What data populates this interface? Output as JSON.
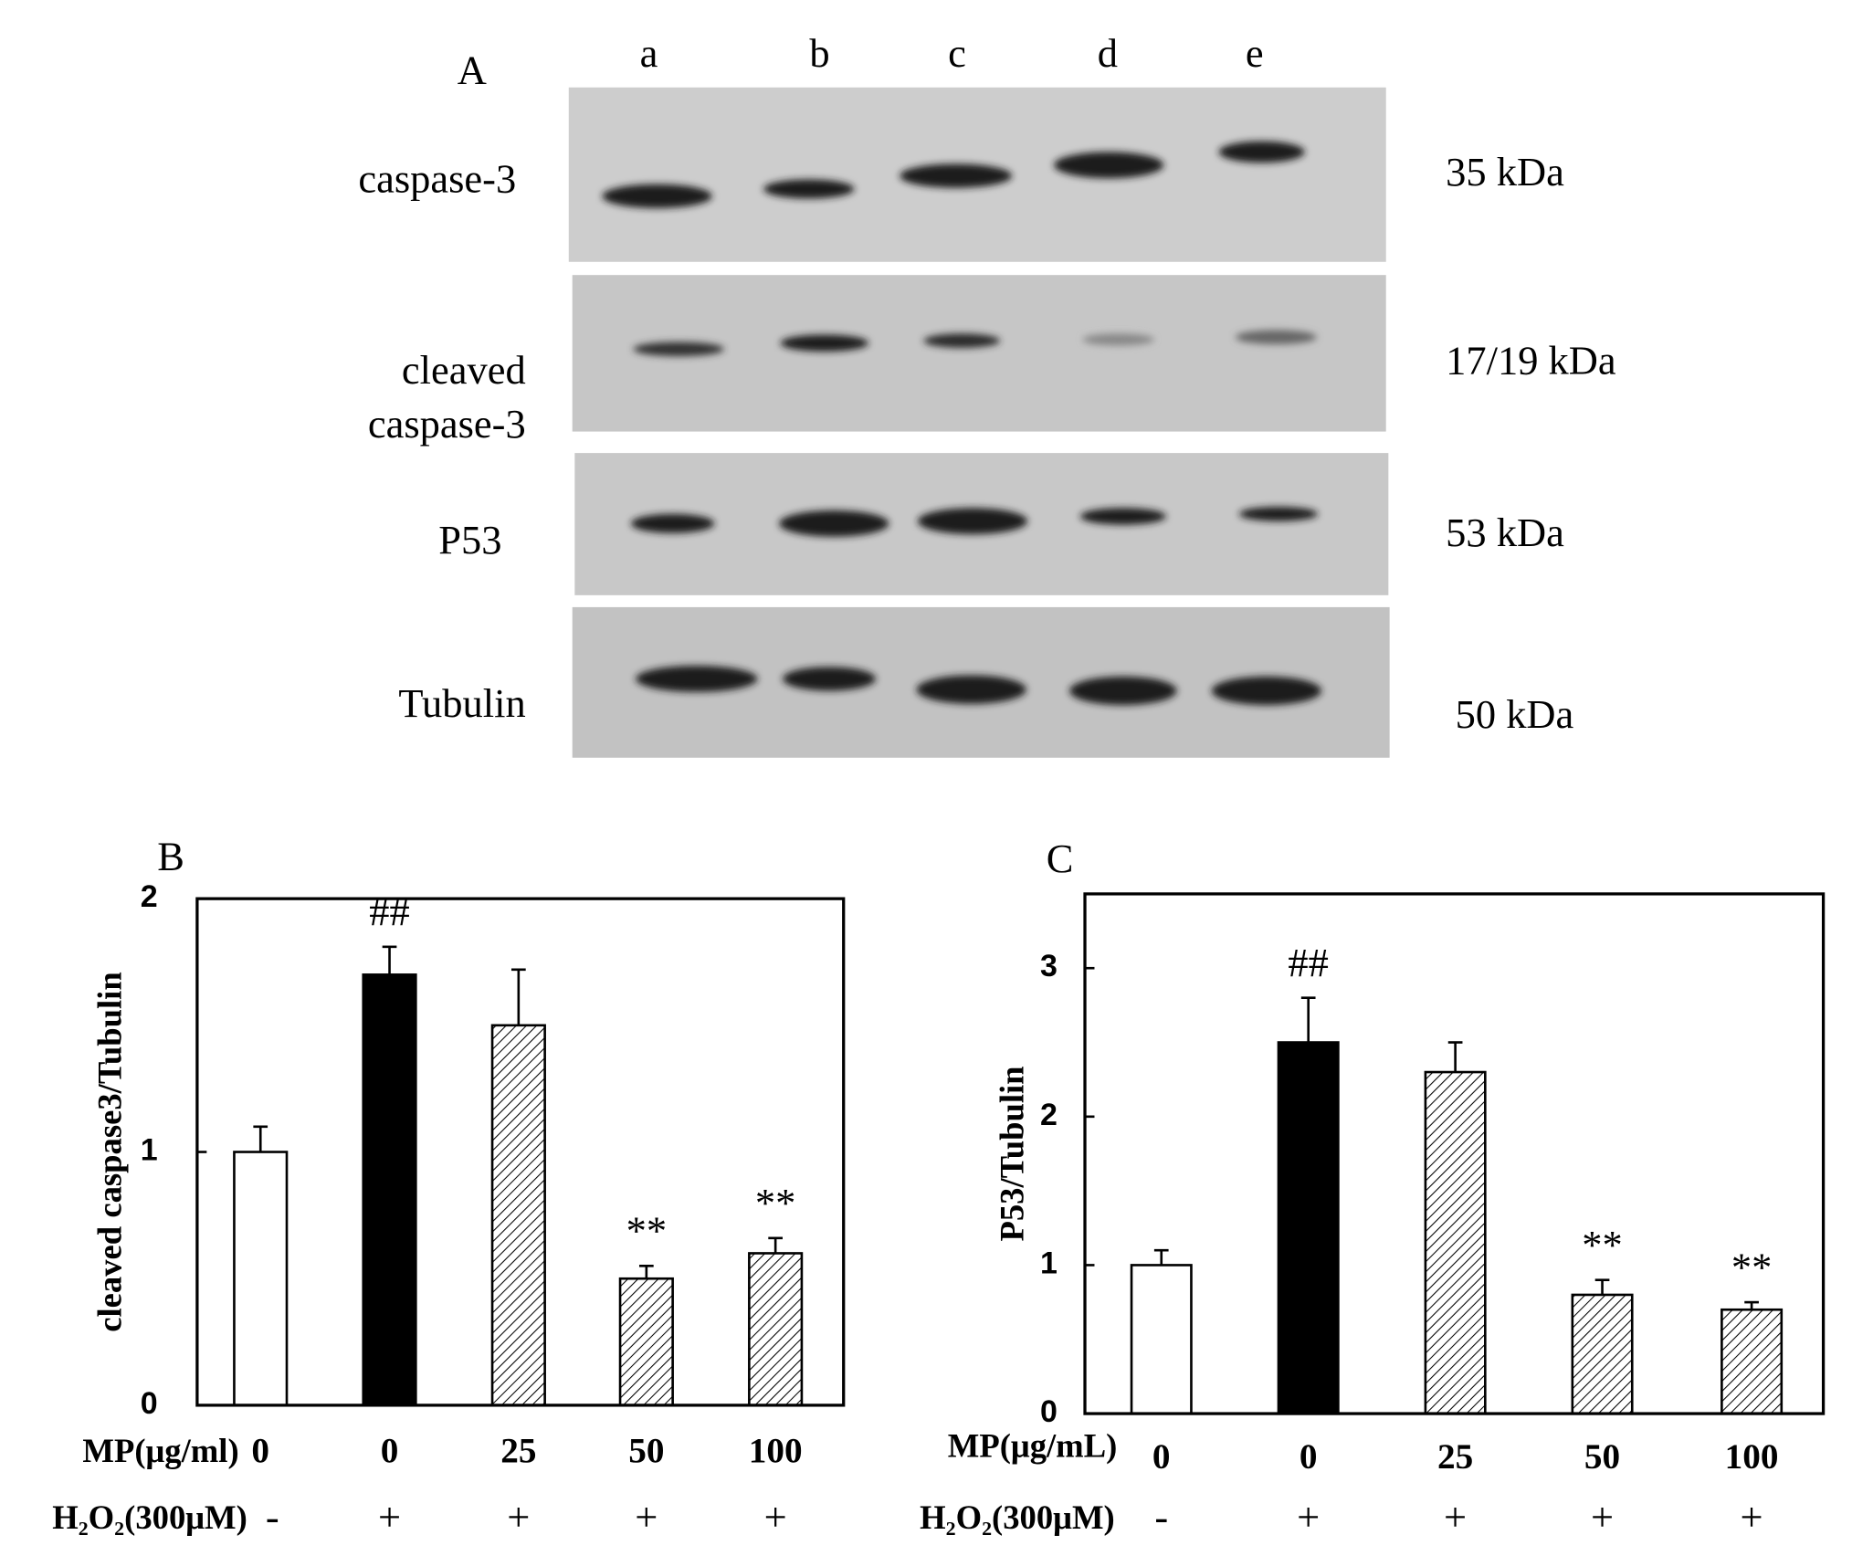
{
  "panel_a": {
    "letter": "A",
    "lanes": [
      "a",
      "b",
      "c",
      "d",
      "e"
    ],
    "rows": [
      {
        "label": [
          "caspase-3"
        ],
        "size": "35 kDa"
      },
      {
        "label": [
          "cleaved",
          "caspase-3"
        ],
        "size": "17/19 kDa"
      },
      {
        "label": [
          "P53"
        ],
        "size": "53 kDa"
      },
      {
        "label": [
          "Tubulin"
        ],
        "size": "50 kDa"
      }
    ]
  },
  "chart_data": [
    {
      "type": "bar",
      "panel": "B",
      "y_label": "cleaved caspase3/Tubulin",
      "x_row_label": "MP(μg/ml)",
      "categories": [
        "0",
        "0",
        "25",
        "50",
        "100"
      ],
      "h2o2_label": "H₂O₂(300μM)",
      "h2o2": [
        "-",
        "+",
        "+",
        "+",
        "+"
      ],
      "values": [
        1.0,
        1.7,
        1.5,
        0.5,
        0.6
      ],
      "errors": [
        0.1,
        0.11,
        0.22,
        0.05,
        0.06
      ],
      "fills": [
        "white",
        "black",
        "hatch",
        "hatch",
        "hatch"
      ],
      "annotations": [
        {
          "index": 1,
          "text": "##"
        },
        {
          "index": 3,
          "text": "**"
        },
        {
          "index": 4,
          "text": "**"
        }
      ],
      "ylim": [
        0,
        2
      ],
      "yticks": [
        0,
        1,
        2
      ]
    },
    {
      "type": "bar",
      "panel": "C",
      "y_label": "P53/Tubulin",
      "x_row_label": "MP(μg/mL)",
      "categories": [
        "0",
        "0",
        "25",
        "50",
        "100"
      ],
      "h2o2_label": "H₂O₂(300μM)",
      "h2o2": [
        "-",
        "+",
        "+",
        "+",
        "+"
      ],
      "values": [
        1.0,
        2.5,
        2.3,
        0.8,
        0.7
      ],
      "errors": [
        0.1,
        0.3,
        0.2,
        0.1,
        0.05
      ],
      "fills": [
        "white",
        "black",
        "hatch",
        "hatch",
        "hatch"
      ],
      "annotations": [
        {
          "index": 1,
          "text": "##"
        },
        {
          "index": 3,
          "text": "**"
        },
        {
          "index": 4,
          "text": "**"
        }
      ],
      "ylim": [
        0,
        3.5
      ],
      "yticks": [
        0,
        1,
        2,
        3
      ]
    }
  ]
}
